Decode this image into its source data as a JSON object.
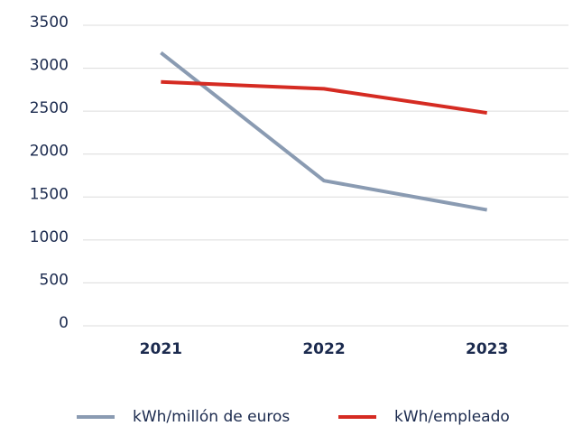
{
  "chart_data": {
    "type": "line",
    "categories": [
      "2021",
      "2022",
      "2023"
    ],
    "series": [
      {
        "name": "kWh/millón de euros",
        "color": "#8a9bb2",
        "values": [
          3180,
          1690,
          1350
        ]
      },
      {
        "name": "kWh/empleado",
        "color": "#d52b22",
        "values": [
          2840,
          2760,
          2480
        ]
      }
    ],
    "ylim": [
      0,
      3500
    ],
    "yticks": [
      0,
      500,
      1000,
      1500,
      2000,
      2500,
      3000,
      3500
    ],
    "grid": true,
    "legend": "bottom"
  }
}
